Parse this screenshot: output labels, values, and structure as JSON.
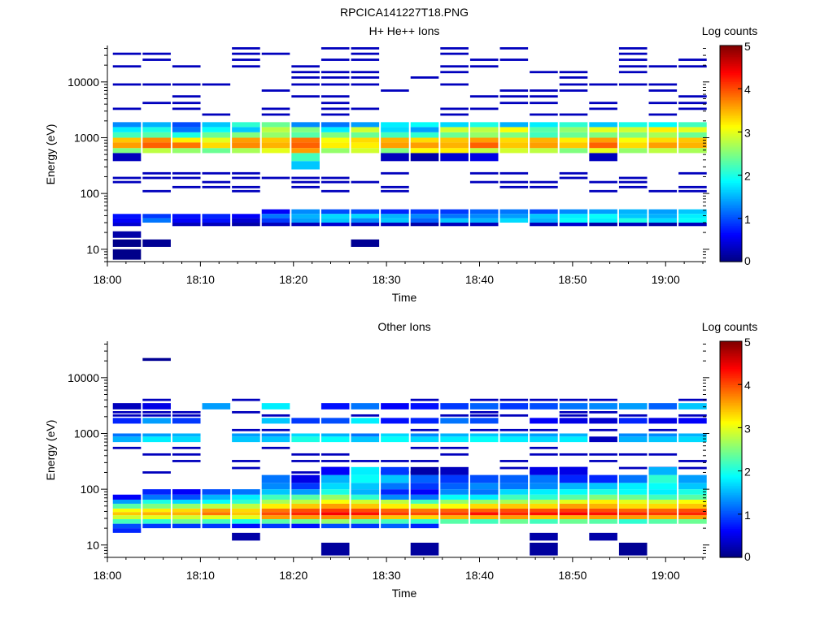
{
  "figure_title": "RPCICA141227T18.PNG",
  "chart_data": [
    {
      "type": "heatmap",
      "title": "H+ He++ Ions",
      "xlabel": "Time",
      "ylabel": "Energy (eV)",
      "colorbar_label": "Log counts",
      "colorbar_ticks": [
        "0",
        "1",
        "2",
        "3",
        "4",
        "5"
      ],
      "color_range": [
        0,
        5
      ],
      "yscale": "log",
      "ylim": [
        6,
        45000
      ],
      "y_ticks": [
        {
          "v": 10,
          "label": "10"
        },
        {
          "v": 100,
          "label": "100"
        },
        {
          "v": 1000,
          "label": "1000"
        },
        {
          "v": 10000,
          "label": "10000"
        }
      ],
      "x_range_min": [
        0,
        64
      ],
      "x_ticks": [
        {
          "v": 0,
          "label": "18:00"
        },
        {
          "v": 10,
          "label": "18:10"
        },
        {
          "v": 20,
          "label": "18:20"
        },
        {
          "v": 30,
          "label": "18:30"
        },
        {
          "v": 40,
          "label": "18:40"
        },
        {
          "v": 50,
          "label": "18:50"
        },
        {
          "v": 60,
          "label": "19:00"
        }
      ],
      "time_columns_min": [
        2.1,
        5.3,
        8.5,
        11.7,
        14.9,
        18.1,
        21.3,
        24.5,
        27.7,
        30.9,
        34.1,
        37.3,
        40.5,
        43.7,
        46.9,
        50.1,
        53.3,
        56.5,
        59.7,
        62.9
      ],
      "bands": [
        {
          "e": [
            820,
            1000
          ],
          "v": [
            3.4,
            3.7,
            3.2,
            3.0,
            3.6,
            3.4,
            3.8,
            3.1,
            3.3,
            3.5,
            3.3,
            3.4,
            3.6,
            3.3,
            3.5,
            3.2,
            3.6,
            3.1,
            3.3,
            3.4
          ]
        },
        {
          "e": [
            650,
            820
          ],
          "v": [
            3.6,
            3.9,
            3.8,
            3.3,
            3.7,
            3.5,
            3.9,
            3.2,
            3.2,
            3.6,
            3.6,
            3.5,
            3.9,
            3.4,
            3.6,
            3.4,
            3.9,
            3.3,
            3.6,
            3.5
          ]
        },
        {
          "e": [
            530,
            650
          ],
          "v": [
            2.5,
            2.8,
            2.6,
            2.4,
            2.7,
            3.0,
            3.6,
            2.6,
            2.9,
            2.5,
            3.1,
            3.2,
            2.8,
            2.9,
            2.8,
            2.5,
            3.0,
            2.6,
            2.8,
            2.7
          ]
        },
        {
          "e": [
            1000,
            1250
          ],
          "v": [
            2.2,
            2.3,
            2.0,
            2.4,
            2.5,
            2.6,
            2.3,
            2.5,
            2.4,
            2.2,
            2.1,
            2.4,
            2.6,
            2.5,
            2.2,
            2.4,
            2.5,
            2.5,
            2.7,
            2.4
          ]
        },
        {
          "e": [
            1250,
            1550
          ],
          "v": [
            1.8,
            2.0,
            1.2,
            1.9,
            1.6,
            2.8,
            2.5,
            1.8,
            2.9,
            1.7,
            1.4,
            2.9,
            2.8,
            3.1,
            2.3,
            2.6,
            3.0,
            2.9,
            3.2,
            3.0
          ]
        },
        {
          "e": [
            1550,
            1900
          ],
          "v": [
            1.3,
            1.5,
            1.0,
            1.6,
            2.1,
            2.4,
            1.3,
            1.2,
            1.4,
            1.8,
            1.9,
            1.7,
            2.0,
            1.5,
            1.8,
            2.1,
            1.6,
            2.0,
            1.9,
            2.2
          ]
        },
        {
          "e": [
            380,
            530
          ],
          "v": [
            0.3,
            0,
            0,
            0,
            0,
            0,
            2.2,
            0,
            0,
            0.3,
            0.2,
            0.4,
            0.5,
            0,
            0,
            0,
            0.3,
            0,
            0,
            0
          ]
        },
        {
          "e": [
            270,
            380
          ],
          "v": [
            0,
            0,
            0,
            0,
            0,
            0,
            1.6,
            0,
            0,
            0,
            0,
            0,
            0,
            0,
            0,
            0,
            0,
            0,
            0,
            0
          ]
        },
        {
          "e": [
            43,
            52
          ],
          "v": [
            0,
            0,
            0,
            0,
            0,
            0.6,
            1.3,
            1.0,
            1.0,
            0.8,
            0.9,
            0.9,
            1.1,
            1.2,
            1.0,
            1.3,
            1.4,
            1.5,
            1.4,
            1.6
          ]
        },
        {
          "e": [
            36,
            43
          ],
          "v": [
            0.7,
            0.9,
            0.7,
            0.8,
            0.6,
            1.2,
            1.5,
            1.7,
            1.7,
            1.5,
            1.3,
            1.2,
            1.3,
            1.4,
            1.6,
            1.8,
            1.9,
            1.6,
            1.5,
            1.8
          ]
        },
        {
          "e": [
            30,
            36
          ],
          "v": [
            0.6,
            1.2,
            0.6,
            0.7,
            0.4,
            0.9,
            1.4,
            1.6,
            1.3,
            1.6,
            1.1,
            1.6,
            1.5,
            1.7,
            1.5,
            1.9,
            1.8,
            2.0,
            1.7,
            1.9
          ]
        },
        {
          "e": [
            26,
            30
          ],
          "v": [
            0.4,
            0,
            0.3,
            0.3,
            0.2,
            0.3,
            0.3,
            0.4,
            0.3,
            0.3,
            0.2,
            0.3,
            0.3,
            0,
            0.3,
            0.4,
            0.2,
            0.3,
            0.2,
            0.3
          ]
        },
        {
          "e": [
            16,
            21
          ],
          "v": [
            0.2,
            0,
            0,
            0,
            0,
            0,
            0,
            0,
            0,
            0,
            0,
            0,
            0,
            0,
            0,
            0,
            0,
            0,
            0,
            0
          ]
        },
        {
          "e": [
            11,
            15
          ],
          "v": [
            0.05,
            0.1,
            0,
            0,
            0,
            0,
            0,
            0,
            0.1,
            0,
            0,
            0,
            0,
            0,
            0,
            0,
            0,
            0,
            0,
            0
          ]
        },
        {
          "e": [
            6.5,
            10
          ],
          "v": [
            0.05,
            0,
            0,
            0,
            0,
            0,
            0,
            0,
            0,
            0,
            0,
            0,
            0,
            0,
            0,
            0,
            0,
            0,
            0,
            0
          ]
        }
      ],
      "sparse_lines_e": [
        110,
        130,
        160,
        190,
        230,
        2600,
        3300,
        4200,
        5500,
        7000,
        9000,
        12000,
        15000,
        19000,
        25000,
        32000,
        40000
      ],
      "sparse_level": 0.3,
      "sparse_seed": 7
    },
    {
      "type": "heatmap",
      "title": "Other Ions",
      "xlabel": "Time",
      "ylabel": "Energy (eV)",
      "colorbar_label": "Log counts",
      "colorbar_ticks": [
        "0",
        "1",
        "2",
        "3",
        "4",
        "5"
      ],
      "color_range": [
        0,
        5
      ],
      "yscale": "log",
      "ylim": [
        6,
        45000
      ],
      "y_ticks": [
        {
          "v": 10,
          "label": "10"
        },
        {
          "v": 100,
          "label": "100"
        },
        {
          "v": 1000,
          "label": "1000"
        },
        {
          "v": 10000,
          "label": "10000"
        }
      ],
      "x_range_min": [
        0,
        64
      ],
      "x_ticks": [
        {
          "v": 0,
          "label": "18:00"
        },
        {
          "v": 10,
          "label": "18:10"
        },
        {
          "v": 20,
          "label": "18:20"
        },
        {
          "v": 30,
          "label": "18:30"
        },
        {
          "v": 40,
          "label": "18:40"
        },
        {
          "v": 50,
          "label": "18:50"
        },
        {
          "v": 60,
          "label": "19:00"
        }
      ],
      "time_columns_min": [
        2.1,
        5.3,
        8.5,
        11.7,
        14.9,
        18.1,
        21.3,
        24.5,
        27.7,
        30.9,
        34.1,
        37.3,
        40.5,
        43.7,
        46.9,
        50.1,
        53.3,
        56.5,
        59.7,
        62.9
      ],
      "bands": [
        {
          "e": [
            34,
            39
          ],
          "v": [
            3.4,
            3.5,
            3.5,
            3.8,
            3.4,
            4.0,
            4.2,
            4.4,
            4.3,
            4.1,
            4.0,
            4.1,
            4.3,
            4.2,
            4.3,
            4.4,
            4.3,
            4.2,
            4.1,
            4.2
          ]
        },
        {
          "e": [
            39,
            45
          ],
          "v": [
            3.1,
            3.2,
            3.3,
            3.6,
            3.3,
            3.8,
            4.0,
            4.1,
            4.0,
            3.9,
            3.8,
            3.9,
            3.9,
            4.0,
            4.0,
            4.1,
            4.0,
            3.9,
            3.9,
            4.0
          ]
        },
        {
          "e": [
            29,
            34
          ],
          "v": [
            2.9,
            3.0,
            2.9,
            3.0,
            3.0,
            3.6,
            3.6,
            3.7,
            3.6,
            3.4,
            3.3,
            3.5,
            3.5,
            3.6,
            3.4,
            3.5,
            3.6,
            3.6,
            3.5,
            3.6
          ]
        },
        {
          "e": [
            45,
            55
          ],
          "v": [
            2.3,
            2.5,
            2.6,
            2.8,
            2.8,
            3.2,
            3.4,
            3.6,
            3.4,
            3.2,
            3.0,
            3.1,
            3.3,
            3.4,
            3.3,
            3.6,
            3.5,
            3.3,
            3.3,
            3.4
          ]
        },
        {
          "e": [
            55,
            65
          ],
          "v": [
            1.4,
            2.0,
            1.7,
            1.9,
            2.1,
            2.7,
            2.8,
            3.1,
            2.9,
            2.8,
            2.2,
            2.6,
            2.6,
            2.7,
            2.8,
            3.0,
            3.2,
            3.0,
            2.9,
            3.1
          ]
        },
        {
          "e": [
            24,
            29
          ],
          "v": [
            2.2,
            2.1,
            2.4,
            2.2,
            2.0,
            2.3,
            2.4,
            2.6,
            2.3,
            2.2,
            2.1,
            2.3,
            2.2,
            2.4,
            2.2,
            2.4,
            2.3,
            2.1,
            2.3,
            2.4
          ]
        },
        {
          "e": [
            65,
            80
          ],
          "v": [
            0.6,
            1.2,
            1.0,
            1.5,
            1.8,
            2.2,
            2.3,
            2.6,
            2.1,
            1.3,
            1.2,
            1.9,
            1.8,
            2.2,
            2.1,
            2.3,
            2.5,
            2.4,
            2.2,
            2.3
          ]
        },
        {
          "e": [
            80,
            100
          ],
          "v": [
            0,
            0.8,
            0.6,
            1.0,
            1.2,
            1.6,
            1.4,
            2.0,
            1.5,
            0.8,
            0.6,
            1.3,
            1.2,
            1.7,
            1.8,
            1.9,
            2.0,
            1.9,
            1.8,
            2.0
          ]
        },
        {
          "e": [
            100,
            130
          ],
          "v": [
            0,
            0,
            0,
            0,
            0,
            1.3,
            0.9,
            1.7,
            1.6,
            1.2,
            0.9,
            1.1,
            1.3,
            1.2,
            1.3,
            1.5,
            1.6,
            1.8,
            1.9,
            1.6
          ]
        },
        {
          "e": [
            130,
            180
          ],
          "v": [
            0,
            0,
            0,
            0,
            0,
            1.2,
            0.5,
            1.5,
            1.9,
            1.6,
            1.1,
            0.9,
            1.0,
            1.1,
            1.2,
            0.8,
            0.8,
            1.2,
            2.1,
            1.4
          ]
        },
        {
          "e": [
            180,
            250
          ],
          "v": [
            0,
            0,
            0,
            0,
            0,
            0,
            0,
            0.6,
            1.8,
            0.9,
            0.2,
            0.3,
            0,
            0,
            0.5,
            0.5,
            0,
            0,
            1.5,
            0
          ]
        },
        {
          "e": [
            20,
            24
          ],
          "v": [
            1.0,
            0.9,
            0.9,
            0.9,
            0.7,
            0.9,
            0.7,
            1.0,
            0.9,
            1.1,
            0.8,
            0,
            0,
            0,
            0,
            0,
            0,
            0,
            0,
            0
          ]
        },
        {
          "e": [
            16.5,
            20
          ],
          "v": [
            0.8,
            0,
            0,
            0,
            0,
            0,
            0,
            0,
            0,
            0,
            0,
            0,
            0,
            0,
            0,
            0,
            0,
            0,
            0,
            0
          ]
        },
        {
          "e": [
            12,
            16.5
          ],
          "v": [
            0,
            0,
            0,
            0,
            0.2,
            0,
            0,
            0,
            0,
            0,
            0,
            0,
            0,
            0,
            0.2,
            0,
            0.2,
            0,
            0,
            0
          ]
        },
        {
          "e": [
            6.5,
            11
          ],
          "v": [
            0,
            0,
            0,
            0,
            0,
            0,
            0,
            0.15,
            0,
            0,
            0.15,
            0,
            0,
            0,
            0.15,
            0,
            0,
            0.1,
            0,
            0
          ]
        },
        {
          "e": [
            700,
            880
          ],
          "v": [
            1.5,
            1.8,
            1.7,
            0,
            1.6,
            1.6,
            2.0,
            1.9,
            1.6,
            1.9,
            1.7,
            1.8,
            1.9,
            1.8,
            1.7,
            1.8,
            0.3,
            1.5,
            1.6,
            1.7
          ]
        },
        {
          "e": [
            880,
            1000
          ],
          "v": [
            1.2,
            1.4,
            1.5,
            0,
            1.4,
            1.3,
            1.7,
            1.5,
            1.2,
            1.7,
            1.3,
            1.5,
            1.6,
            1.5,
            1.4,
            1.5,
            0,
            1.3,
            1.3,
            1.5
          ]
        },
        {
          "e": [
            1500,
            1900
          ],
          "v": [
            0.8,
            1.4,
            0.9,
            0,
            0,
            1.6,
            0.9,
            1.0,
            1.8,
            0.7,
            0.8,
            1.2,
            1.0,
            0,
            0.6,
            0.5,
            0.4,
            0.8,
            0.5,
            0.6
          ]
        },
        {
          "e": [
            2700,
            3500
          ],
          "v": [
            0.3,
            0.5,
            0,
            1.4,
            0,
            1.8,
            0,
            0.7,
            1.2,
            0.6,
            0.7,
            0.9,
            1.1,
            0.9,
            1.0,
            1.2,
            1.3,
            1.4,
            1.1,
            1.6
          ]
        },
        {
          "e": [
            20000,
            22500
          ],
          "v": [
            0,
            0.1,
            0,
            0,
            0,
            0,
            0,
            0,
            0,
            0,
            0,
            0,
            0,
            0,
            0,
            0,
            0,
            0,
            0,
            0
          ]
        }
      ],
      "sparse_lines_e": [
        200,
        240,
        320,
        420,
        550,
        1150,
        2100,
        2400,
        4000
      ],
      "sparse_level": 0.3,
      "sparse_seed": 13
    }
  ]
}
